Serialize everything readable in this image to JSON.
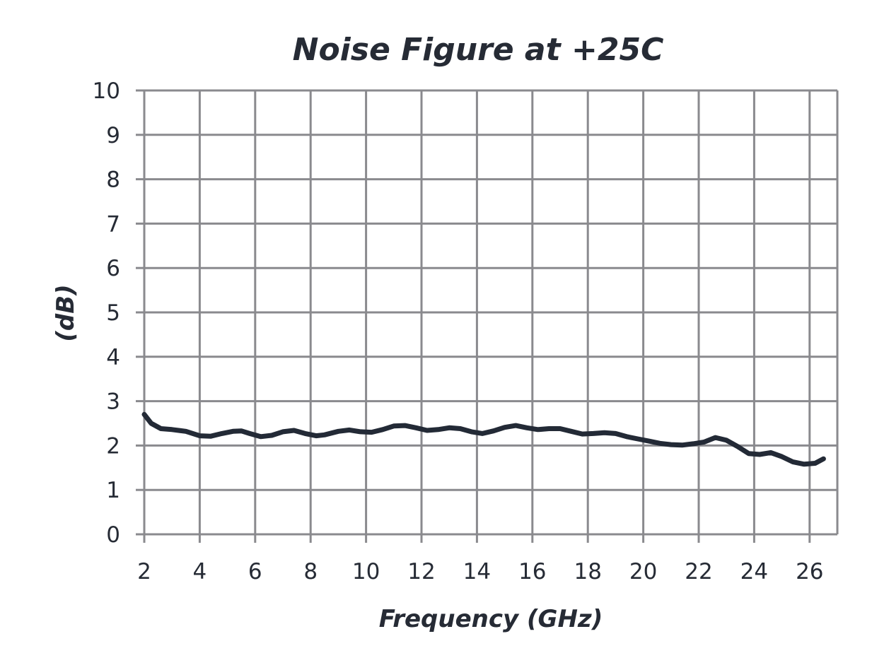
{
  "chart_data": {
    "type": "line",
    "title": "Noise Figure at +25C",
    "xlabel": "Frequency (GHz)",
    "ylabel": "(dB)",
    "xlim": [
      2,
      27
    ],
    "ylim": [
      0,
      10
    ],
    "x_ticks": [
      "2",
      "4",
      "6",
      "8",
      "10",
      "12",
      "14",
      "16",
      "18",
      "20",
      "22",
      "24",
      "26"
    ],
    "y_ticks": [
      "0",
      "1",
      "2",
      "3",
      "4",
      "5",
      "6",
      "7",
      "8",
      "9",
      "10"
    ],
    "grid": true,
    "series": [
      {
        "color": "#232a36",
        "x": [
          2.0,
          2.25,
          2.6,
          3.0,
          3.5,
          4.0,
          4.4,
          4.8,
          5.2,
          5.5,
          5.8,
          6.2,
          6.6,
          7.0,
          7.4,
          7.8,
          8.2,
          8.5,
          9.0,
          9.4,
          9.8,
          10.2,
          10.6,
          11.0,
          11.4,
          11.8,
          12.2,
          12.6,
          13.0,
          13.4,
          13.8,
          14.2,
          14.6,
          15.0,
          15.4,
          15.8,
          16.2,
          16.6,
          17.0,
          17.4,
          17.8,
          18.2,
          18.6,
          19.0,
          19.4,
          19.8,
          20.2,
          20.6,
          21.0,
          21.4,
          21.8,
          22.2,
          22.6,
          23.0,
          23.4,
          23.8,
          24.2,
          24.6,
          25.0,
          25.4,
          25.8,
          26.2,
          26.5
        ],
        "y": [
          2.7,
          2.5,
          2.38,
          2.36,
          2.32,
          2.22,
          2.21,
          2.27,
          2.32,
          2.33,
          2.27,
          2.2,
          2.23,
          2.31,
          2.34,
          2.27,
          2.22,
          2.24,
          2.32,
          2.35,
          2.31,
          2.3,
          2.36,
          2.44,
          2.45,
          2.4,
          2.34,
          2.36,
          2.4,
          2.38,
          2.31,
          2.27,
          2.33,
          2.41,
          2.45,
          2.4,
          2.36,
          2.38,
          2.38,
          2.32,
          2.26,
          2.27,
          2.29,
          2.27,
          2.2,
          2.15,
          2.1,
          2.05,
          2.02,
          2.01,
          2.04,
          2.08,
          2.18,
          2.12,
          1.98,
          1.82,
          1.8,
          1.84,
          1.75,
          1.63,
          1.58,
          1.6,
          1.7
        ]
      }
    ]
  }
}
